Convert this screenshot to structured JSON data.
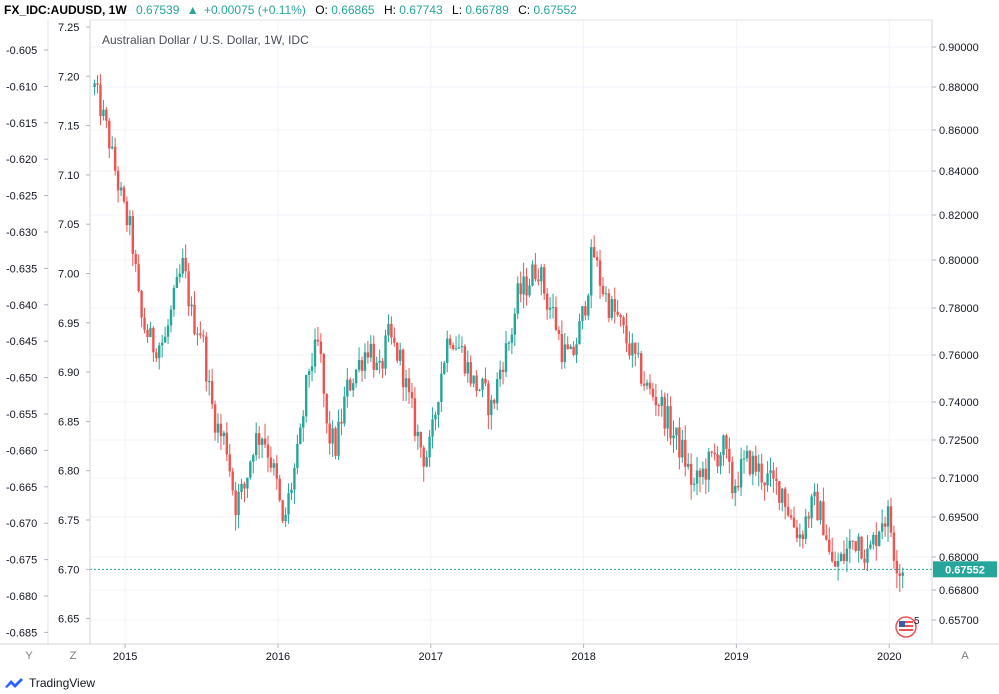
{
  "header": {
    "symbol": "FX_IDC:AUDUSD, 1W",
    "last": "0.67539",
    "change": "+0.00075 (+0.11%)",
    "o_label": "O:",
    "o_value": "0.66865",
    "h_label": "H:",
    "h_value": "0.67743",
    "l_label": "L:",
    "l_value": "0.66789",
    "c_label": "C:",
    "c_value": "0.67552",
    "change_arrow_icon": "triangle-up-icon"
  },
  "chart_title": "Australian Dollar / U.S. Dollar, 1W, IDC",
  "bottom_left_buttons": [
    "Y",
    "Z"
  ],
  "bottom_right_button": "A",
  "price_tag": "0.67552",
  "badge_count": "5",
  "badge_icon": "us-flag-icon",
  "footer": {
    "brand": "TradingView",
    "logo_icon": "tradingview-logo-icon"
  },
  "colors": {
    "up": "#26a69a",
    "down": "#ef5350",
    "price_line": "#26a69a",
    "grid": "#f0f3fa"
  },
  "chart_data": {
    "type": "candlestick",
    "title": "Australian Dollar / U.S. Dollar, 1W, IDC",
    "x_ticks": [
      "2015",
      "2016",
      "2017",
      "2018",
      "2019",
      "2020"
    ],
    "x_tick_values": [
      2015.0,
      2016.0,
      2017.0,
      2018.0,
      2019.0,
      2020.0
    ],
    "x_range": [
      2014.77,
      2020.28
    ],
    "right_axis": {
      "ticks": [
        "0.90000",
        "0.88000",
        "0.86000",
        "0.84000",
        "0.82000",
        "0.80000",
        "0.78000",
        "0.76000",
        "0.74000",
        "0.72500",
        "0.71000",
        "0.69500",
        "0.68000",
        "0.66800",
        "0.65700"
      ],
      "tick_values": [
        0.9,
        0.88,
        0.86,
        0.84,
        0.82,
        0.8,
        0.78,
        0.76,
        0.74,
        0.725,
        0.71,
        0.695,
        0.68,
        0.668,
        0.657
      ]
    },
    "left_axis_1": {
      "ticks": [
        "-0.605",
        "-0.610",
        "-0.615",
        "-0.620",
        "-0.625",
        "-0.630",
        "-0.635",
        "-0.640",
        "-0.645",
        "-0.650",
        "-0.655",
        "-0.660",
        "-0.665",
        "-0.670",
        "-0.675",
        "-0.680",
        "-0.685"
      ],
      "tick_values": [
        -0.605,
        -0.61,
        -0.615,
        -0.62,
        -0.625,
        -0.63,
        -0.635,
        -0.64,
        -0.645,
        -0.65,
        -0.655,
        -0.66,
        -0.665,
        -0.67,
        -0.675,
        -0.68,
        -0.685
      ]
    },
    "left_axis_2": {
      "ticks": [
        "7.25",
        "7.20",
        "7.15",
        "7.10",
        "7.05",
        "7.00",
        "6.95",
        "6.90",
        "6.85",
        "6.80",
        "6.75",
        "6.70",
        "6.65"
      ],
      "tick_values": [
        7.25,
        7.2,
        7.15,
        7.1,
        7.05,
        7.0,
        6.95,
        6.9,
        6.85,
        6.8,
        6.75,
        6.7,
        6.65
      ]
    },
    "last_value": 0.67552,
    "close_path": [
      [
        2014.8,
        0.88
      ],
      [
        2014.88,
        0.86
      ],
      [
        2014.95,
        0.835
      ],
      [
        2015.0,
        0.82
      ],
      [
        2015.04,
        0.812
      ],
      [
        2015.1,
        0.776
      ],
      [
        2015.18,
        0.764
      ],
      [
        2015.26,
        0.766
      ],
      [
        2015.33,
        0.786
      ],
      [
        2015.38,
        0.798
      ],
      [
        2015.44,
        0.775
      ],
      [
        2015.5,
        0.77
      ],
      [
        2015.56,
        0.74
      ],
      [
        2015.62,
        0.727
      ],
      [
        2015.66,
        0.725
      ],
      [
        2015.72,
        0.7
      ],
      [
        2015.78,
        0.706
      ],
      [
        2015.84,
        0.724
      ],
      [
        2015.9,
        0.728
      ],
      [
        2015.95,
        0.718
      ],
      [
        2016.0,
        0.705
      ],
      [
        2016.03,
        0.69
      ],
      [
        2016.08,
        0.705
      ],
      [
        2016.14,
        0.722
      ],
      [
        2016.2,
        0.754
      ],
      [
        2016.27,
        0.765
      ],
      [
        2016.32,
        0.728
      ],
      [
        2016.38,
        0.722
      ],
      [
        2016.45,
        0.745
      ],
      [
        2016.52,
        0.755
      ],
      [
        2016.6,
        0.765
      ],
      [
        2016.66,
        0.75
      ],
      [
        2016.72,
        0.768
      ],
      [
        2016.8,
        0.758
      ],
      [
        2016.86,
        0.74
      ],
      [
        2016.92,
        0.725
      ],
      [
        2016.96,
        0.718
      ],
      [
        2017.0,
        0.722
      ],
      [
        2017.06,
        0.75
      ],
      [
        2017.12,
        0.77
      ],
      [
        2017.2,
        0.762
      ],
      [
        2017.28,
        0.748
      ],
      [
        2017.34,
        0.745
      ],
      [
        2017.4,
        0.737
      ],
      [
        2017.46,
        0.756
      ],
      [
        2017.52,
        0.767
      ],
      [
        2017.57,
        0.785
      ],
      [
        2017.63,
        0.79
      ],
      [
        2017.7,
        0.798
      ],
      [
        2017.76,
        0.783
      ],
      [
        2017.8,
        0.778
      ],
      [
        2017.86,
        0.762
      ],
      [
        2017.92,
        0.758
      ],
      [
        2017.97,
        0.77
      ],
      [
        2018.02,
        0.785
      ],
      [
        2018.06,
        0.805
      ],
      [
        2018.1,
        0.793
      ],
      [
        2018.16,
        0.782
      ],
      [
        2018.22,
        0.776
      ],
      [
        2018.28,
        0.766
      ],
      [
        2018.35,
        0.756
      ],
      [
        2018.42,
        0.745
      ],
      [
        2018.5,
        0.74
      ],
      [
        2018.58,
        0.728
      ],
      [
        2018.65,
        0.72
      ],
      [
        2018.72,
        0.706
      ],
      [
        2018.78,
        0.712
      ],
      [
        2018.85,
        0.718
      ],
      [
        2018.92,
        0.722
      ],
      [
        2018.97,
        0.706
      ],
      [
        2019.02,
        0.712
      ],
      [
        2019.08,
        0.717
      ],
      [
        2019.16,
        0.712
      ],
      [
        2019.24,
        0.707
      ],
      [
        2019.3,
        0.706
      ],
      [
        2019.36,
        0.694
      ],
      [
        2019.42,
        0.688
      ],
      [
        2019.47,
        0.697
      ],
      [
        2019.52,
        0.7
      ],
      [
        2019.58,
        0.692
      ],
      [
        2019.62,
        0.676
      ],
      [
        2019.68,
        0.678
      ],
      [
        2019.75,
        0.685
      ],
      [
        2019.8,
        0.688
      ],
      [
        2019.86,
        0.68
      ],
      [
        2019.9,
        0.686
      ],
      [
        2019.95,
        0.695
      ],
      [
        2020.0,
        0.695
      ],
      [
        2020.03,
        0.683
      ],
      [
        2020.07,
        0.676
      ],
      [
        2020.1,
        0.6755
      ]
    ]
  }
}
